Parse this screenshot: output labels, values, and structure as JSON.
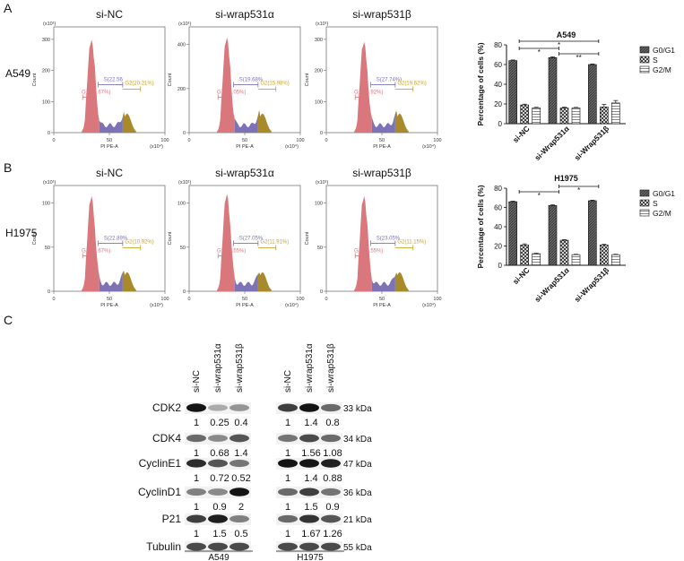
{
  "panel_labels": {
    "a": "A",
    "b": "B",
    "c": "C"
  },
  "cell_lines": [
    "A549",
    "H1975"
  ],
  "flow": {
    "titles": [
      "si-NC",
      "si-wrap531α",
      "si-wrap531β"
    ],
    "x_axis_label": "PI PE-A",
    "x_ticks": [
      "0",
      "50",
      "100"
    ],
    "x_unit": "(x10⁴)",
    "y_axis_label": "Count",
    "y_unit": "(x10¹)",
    "rows": [
      {
        "cell": "A549",
        "plots": [
          {
            "y_ticks": [
              "0",
              "100",
              "200",
              "300"
            ],
            "ymax": 340,
            "g1": "G1(56.67%)",
            "s": "S(22.56",
            "g2": "G2(20.21%)",
            "peak": 0.88
          },
          {
            "y_ticks": [
              "0",
              "200",
              "400"
            ],
            "ymax": 480,
            "g1": "G1(65.05%)",
            "s": "S(19.68%",
            "g2": "G2(15.98%)",
            "peak": 0.9
          },
          {
            "y_ticks": [
              "0",
              "100",
              "200",
              "300"
            ],
            "ymax": 340,
            "g1": "G1(60.92%)",
            "s": "S(27.74%)",
            "g2": "G2(19.62%)",
            "peak": 0.86
          }
        ]
      },
      {
        "cell": "H1975",
        "plots": [
          {
            "y_ticks": [
              "0",
              "50",
              "100"
            ],
            "ymax": 120,
            "g1": "G1(65.67%)",
            "s": "S(22.89%",
            "g2": "G2(10.92%)",
            "peak": 0.9
          },
          {
            "y_ticks": [
              "0",
              "50",
              "100"
            ],
            "ymax": 120,
            "g1": "G1(62.55%)",
            "s": "S(27.05%",
            "g2": "G2(11.91%)",
            "peak": 0.92
          },
          {
            "y_ticks": [
              "0",
              "50",
              "100"
            ],
            "ymax": 120,
            "g1": "G1(65.55%)",
            "s": "S(23.05%",
            "g2": "G2(11.15%)",
            "peak": 0.9
          }
        ]
      }
    ]
  },
  "chart_data": [
    {
      "type": "bar",
      "title": "A549",
      "ylabel": "Percentage of cells (%)",
      "ylim": [
        0,
        80
      ],
      "yticks": [
        "0",
        "20",
        "40",
        "60",
        "80"
      ],
      "categories": [
        "si-NC",
        "si-Wrap531α",
        "si-Wrap531β"
      ],
      "series": [
        {
          "name": "G0/G1",
          "values": [
            64,
            67,
            60
          ],
          "errors": [
            0.6,
            0.8,
            0.6
          ]
        },
        {
          "name": "S",
          "values": [
            19,
            16,
            17
          ],
          "errors": [
            0.8,
            0.8,
            2.5
          ]
        },
        {
          "name": "G2/M",
          "values": [
            16,
            16,
            21
          ],
          "errors": [
            0.6,
            0.5,
            2.5
          ]
        }
      ],
      "significance": [
        {
          "from": 0,
          "to": 1,
          "label": "*"
        },
        {
          "from": 0,
          "to": 2,
          "label": "*"
        },
        {
          "from": 1,
          "to": 2,
          "label": "**"
        }
      ],
      "legend": "right"
    },
    {
      "type": "bar",
      "title": "H1975",
      "ylabel": "Percentage of cells (%)",
      "ylim": [
        0,
        80
      ],
      "yticks": [
        "0",
        "20",
        "40",
        "60",
        "80"
      ],
      "categories": [
        "si-NC",
        "si-Wrap531α",
        "si-Wrap531β"
      ],
      "series": [
        {
          "name": "G0/G1",
          "values": [
            66,
            62,
            67
          ],
          "errors": [
            0.6,
            0.8,
            0.6
          ]
        },
        {
          "name": "S",
          "values": [
            21,
            26,
            21
          ],
          "errors": [
            1.2,
            0.6,
            0.8
          ]
        },
        {
          "name": "G2/M",
          "values": [
            12,
            11,
            11
          ],
          "errors": [
            0.5,
            0.4,
            0.4
          ]
        }
      ],
      "significance": [
        {
          "from": 0,
          "to": 1,
          "label": "*"
        },
        {
          "from": 1,
          "to": 2,
          "label": "*"
        }
      ],
      "legend": "right"
    }
  ],
  "blot": {
    "lanes": [
      "si-NC",
      "si-wrap531α",
      "si-wrap531β"
    ],
    "groups": [
      "A549",
      "H1975"
    ],
    "rows": [
      {
        "name": "CDK2",
        "kda": "33 kDa",
        "quant": [
          [
            "1",
            "0.25",
            "0.4"
          ],
          [
            "1",
            "1.4",
            "0.8"
          ]
        ],
        "intensity": [
          [
            1,
            0.3,
            0.4
          ],
          [
            0.8,
            1,
            0.6
          ]
        ]
      },
      {
        "name": "CDK4",
        "kda": "34 kDa",
        "quant": [
          [
            "1",
            "0.68",
            "1.4"
          ],
          [
            "1",
            "1.56",
            "1.08"
          ]
        ],
        "intensity": [
          [
            0.6,
            0.45,
            0.7
          ],
          [
            0.55,
            0.75,
            0.6
          ]
        ]
      },
      {
        "name": "CyclinE1",
        "kda": "47 kDa",
        "quant": [
          [
            "1",
            "0.72",
            "0.52"
          ],
          [
            "1",
            "1.4",
            "0.88"
          ]
        ],
        "intensity": [
          [
            0.9,
            0.7,
            0.55
          ],
          [
            1,
            1,
            0.95
          ]
        ]
      },
      {
        "name": "CyclinD1",
        "kda": "36 kDa",
        "quant": [
          [
            "1",
            "0.9",
            "2"
          ],
          [
            "1",
            "1.5",
            "0.9"
          ]
        ],
        "intensity": [
          [
            0.5,
            0.45,
            1
          ],
          [
            0.6,
            0.8,
            0.55
          ]
        ]
      },
      {
        "name": "P21",
        "kda": "21 kDa",
        "quant": [
          [
            "1",
            "1.5",
            "0.5"
          ],
          [
            "1",
            "1.67",
            "1.26"
          ]
        ],
        "intensity": [
          [
            0.8,
            0.95,
            0.5
          ],
          [
            0.6,
            0.85,
            0.7
          ]
        ]
      },
      {
        "name": "Tubulin",
        "kda": "55 kDa",
        "quant": null,
        "intensity": [
          [
            0.75,
            0.75,
            0.75
          ],
          [
            0.75,
            0.75,
            0.75
          ]
        ]
      }
    ]
  }
}
